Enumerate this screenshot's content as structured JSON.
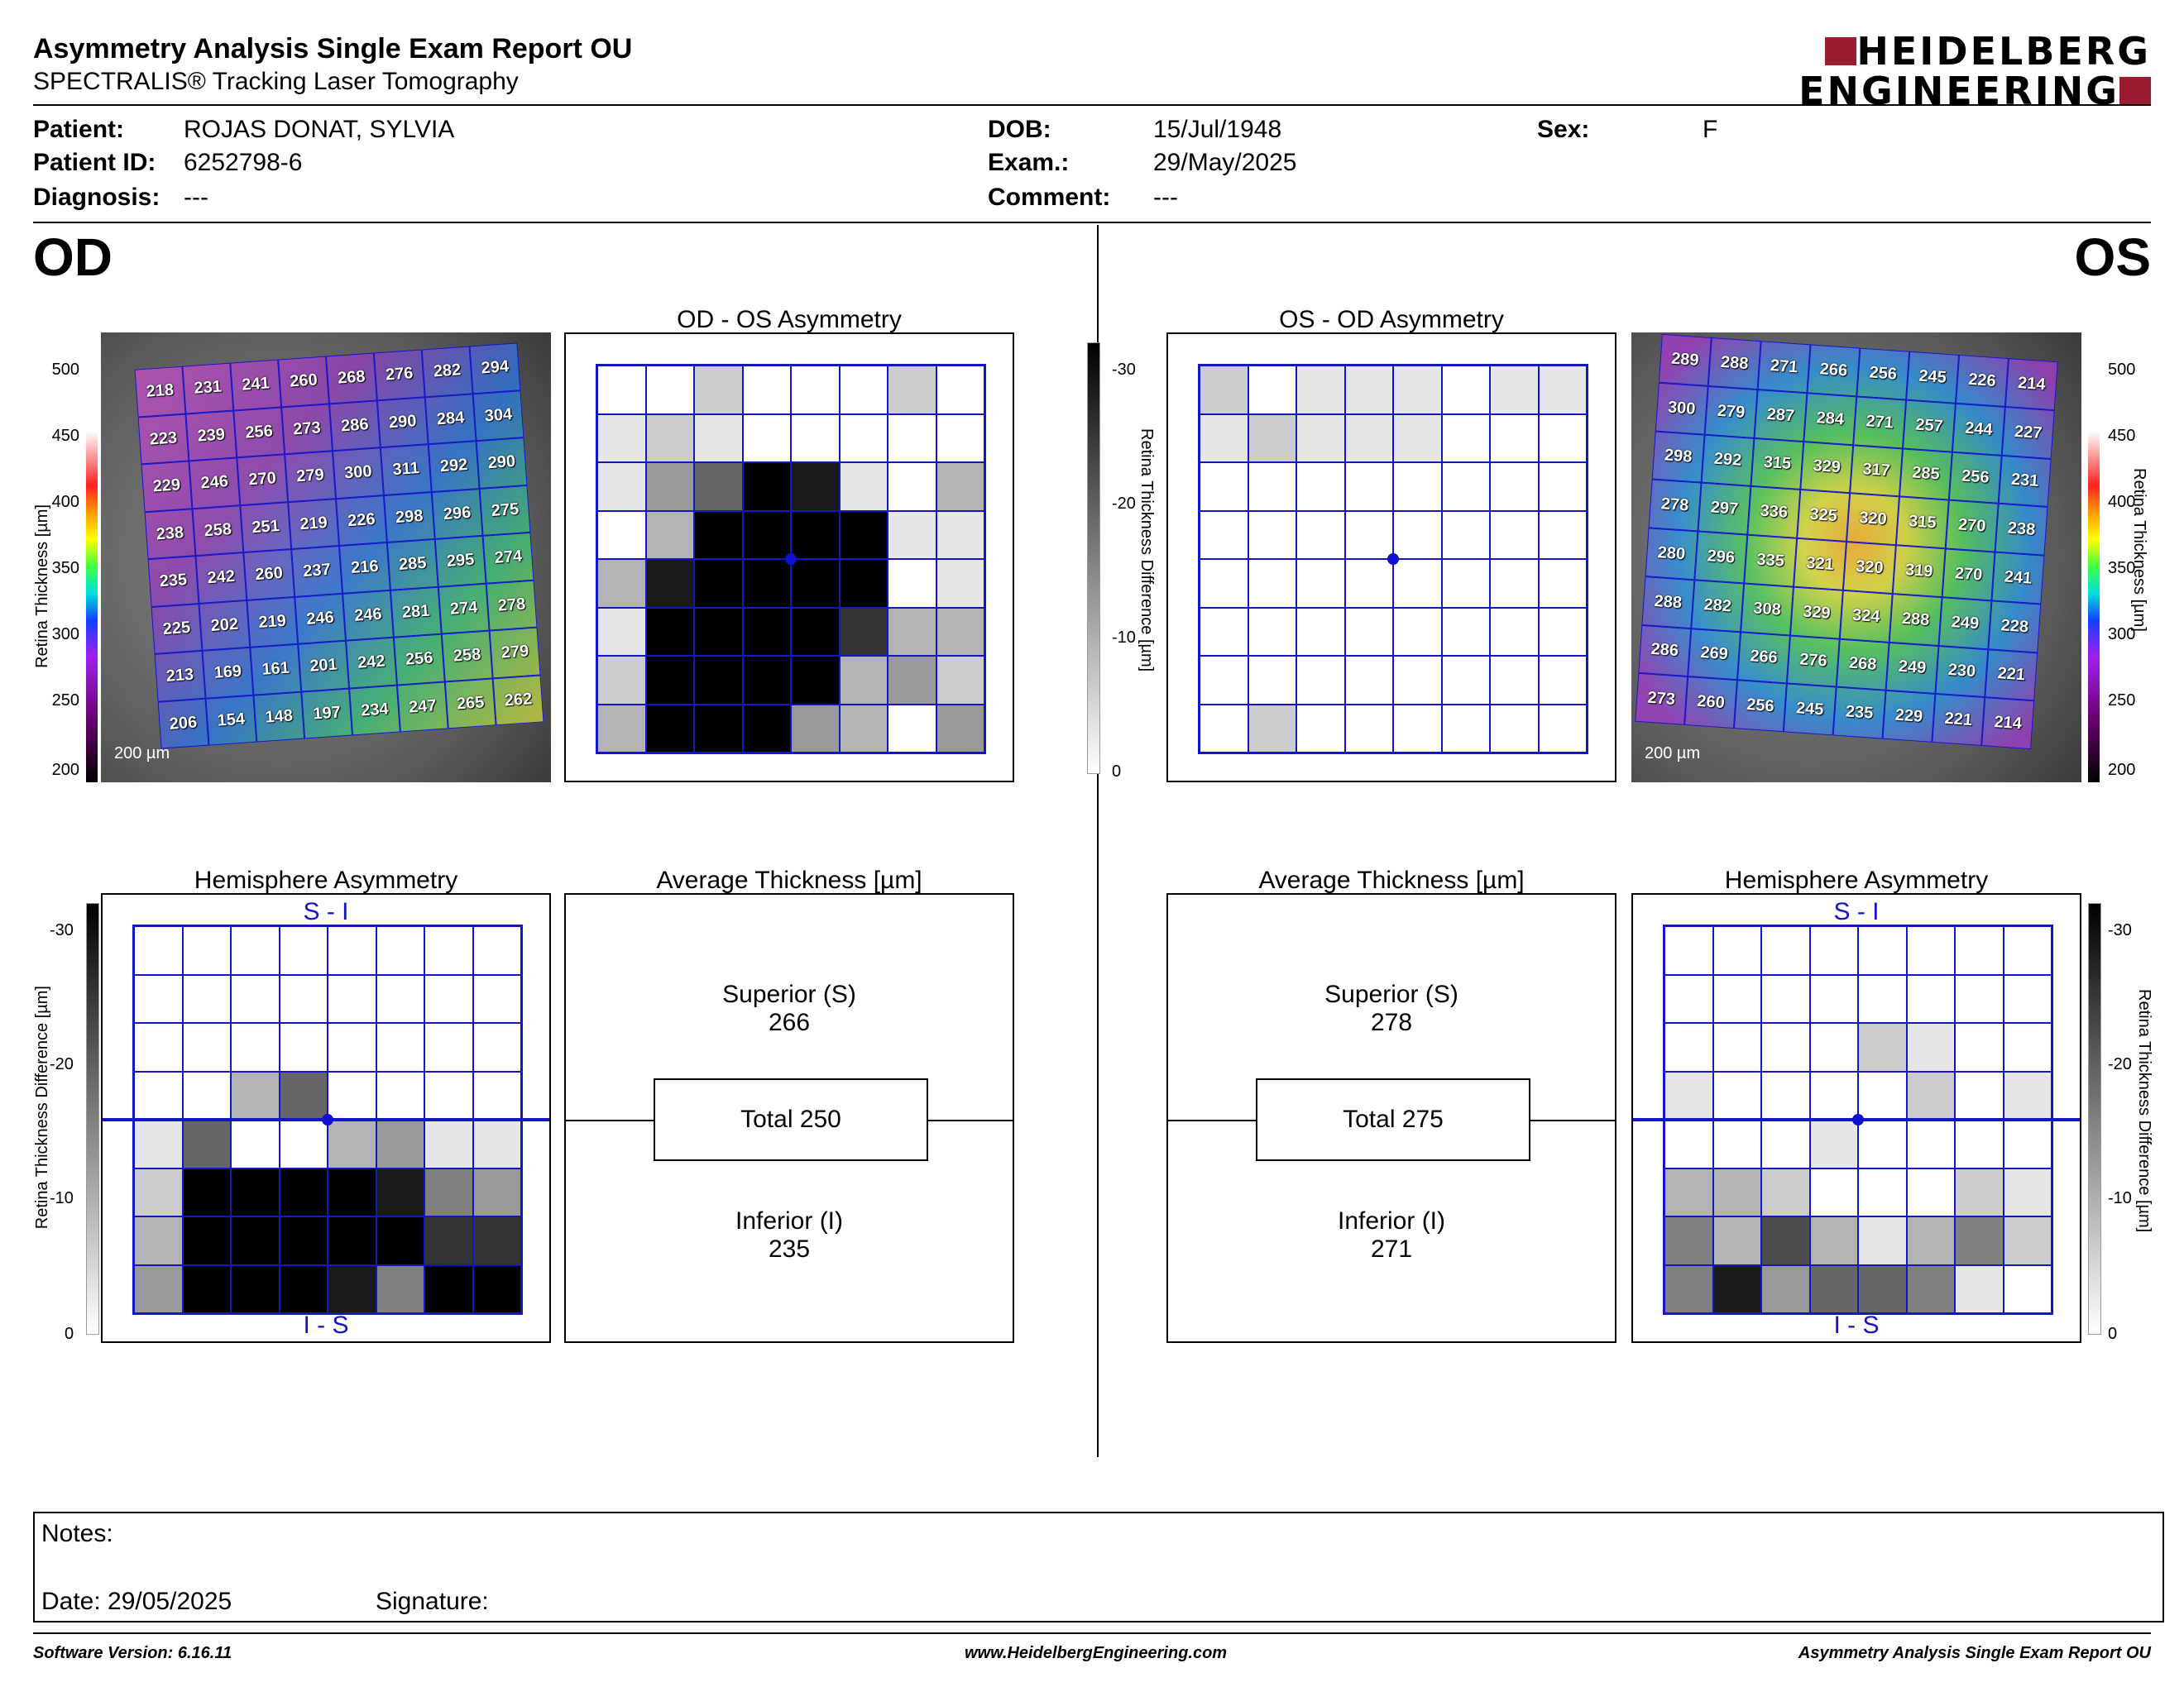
{
  "header": {
    "title": "Asymmetry Analysis Single Exam Report OU",
    "subtitle": "SPECTRALIS® Tracking Laser Tomography",
    "logo_line1": "HEIDELBERG",
    "logo_line2": "ENGINEERING"
  },
  "patient": {
    "patient_label": "Patient:",
    "patient_value": "ROJAS DONAT, SYLVIA",
    "id_label": "Patient ID:",
    "id_value": "6252798-6",
    "diagnosis_label": "Diagnosis:",
    "diagnosis_value": "---",
    "dob_label": "DOB:",
    "dob_value": "15/Jul/1948",
    "exam_label": "Exam.:",
    "exam_value": "29/May/2025",
    "comment_label": "Comment:",
    "comment_value": "---",
    "sex_label": "Sex:",
    "sex_value": "F"
  },
  "od": {
    "eye_label": "OD",
    "asym_title": "OD - OS Asymmetry",
    "hemi_title": "Hemisphere Asymmetry",
    "avg_title": "Average Thickness [µm]",
    "scale_bar": "200 µm",
    "thickness": [
      [
        218,
        231,
        241,
        260,
        268,
        276,
        282,
        294
      ],
      [
        223,
        239,
        256,
        273,
        286,
        290,
        284,
        304
      ],
      [
        229,
        246,
        270,
        279,
        300,
        311,
        292,
        290
      ],
      [
        238,
        258,
        251,
        219,
        226,
        298,
        296,
        275
      ],
      [
        235,
        242,
        260,
        237,
        216,
        285,
        295,
        274
      ],
      [
        225,
        202,
        219,
        246,
        246,
        281,
        274,
        278
      ],
      [
        213,
        169,
        161,
        201,
        242,
        256,
        258,
        279
      ],
      [
        206,
        154,
        148,
        197,
        234,
        247,
        265,
        262
      ]
    ],
    "asym_shades": [
      [
        0,
        0,
        2,
        0,
        0,
        0,
        2,
        0
      ],
      [
        1,
        2,
        1,
        0,
        0,
        0,
        0,
        0
      ],
      [
        1,
        4,
        6,
        10,
        9,
        1,
        0,
        3
      ],
      [
        0,
        3,
        10,
        10,
        10,
        10,
        1,
        1
      ],
      [
        3,
        9,
        10,
        10,
        10,
        10,
        0,
        1
      ],
      [
        1,
        10,
        10,
        10,
        10,
        8,
        3,
        3
      ],
      [
        2,
        10,
        10,
        10,
        10,
        3,
        4,
        2
      ],
      [
        3,
        10,
        10,
        10,
        4,
        3,
        0,
        4
      ]
    ],
    "hemi_shades": [
      [
        0,
        0,
        0,
        0,
        0,
        0,
        0,
        0
      ],
      [
        0,
        0,
        0,
        0,
        0,
        0,
        0,
        0
      ],
      [
        0,
        0,
        0,
        0,
        0,
        0,
        0,
        0
      ],
      [
        0,
        0,
        3,
        6,
        0,
        0,
        0,
        0
      ],
      [
        1,
        6,
        0,
        0,
        3,
        4,
        1,
        1
      ],
      [
        2,
        10,
        10,
        10,
        10,
        9,
        5,
        4
      ],
      [
        3,
        10,
        10,
        10,
        10,
        10,
        8,
        8
      ],
      [
        4,
        10,
        10,
        10,
        9,
        5,
        10,
        10
      ]
    ],
    "superior_label": "Superior (S)",
    "superior_value": "266",
    "total_label": "Total 250",
    "inferior_label": "Inferior (I)",
    "inferior_value": "235",
    "si_label": "S - I",
    "is_label": "I - S"
  },
  "os": {
    "eye_label": "OS",
    "asym_title": "OS - OD Asymmetry",
    "hemi_title": "Hemisphere Asymmetry",
    "avg_title": "Average Thickness [µm]",
    "scale_bar": "200 µm",
    "thickness": [
      [
        289,
        288,
        271,
        266,
        256,
        245,
        226,
        214
      ],
      [
        300,
        279,
        287,
        284,
        271,
        257,
        244,
        227
      ],
      [
        298,
        292,
        315,
        329,
        317,
        285,
        256,
        231
      ],
      [
        278,
        297,
        336,
        325,
        320,
        315,
        270,
        238
      ],
      [
        280,
        296,
        335,
        321,
        320,
        319,
        270,
        241
      ],
      [
        288,
        282,
        308,
        329,
        324,
        288,
        249,
        228
      ],
      [
        286,
        269,
        266,
        276,
        268,
        249,
        230,
        221
      ],
      [
        273,
        260,
        256,
        245,
        235,
        229,
        221,
        214
      ]
    ],
    "asym_shades": [
      [
        2,
        0,
        1,
        1,
        1,
        0,
        1,
        1
      ],
      [
        1,
        2,
        1,
        1,
        1,
        0,
        0,
        0
      ],
      [
        0,
        0,
        0,
        0,
        0,
        0,
        0,
        0
      ],
      [
        0,
        0,
        0,
        0,
        0,
        0,
        0,
        0
      ],
      [
        0,
        0,
        0,
        0,
        0,
        0,
        0,
        0
      ],
      [
        0,
        0,
        0,
        0,
        0,
        0,
        0,
        0
      ],
      [
        0,
        0,
        0,
        0,
        0,
        0,
        0,
        0
      ],
      [
        0,
        2,
        0,
        0,
        0,
        0,
        0,
        0
      ]
    ],
    "hemi_shades": [
      [
        0,
        0,
        0,
        0,
        0,
        0,
        0,
        0
      ],
      [
        0,
        0,
        0,
        0,
        0,
        0,
        0,
        0
      ],
      [
        0,
        0,
        0,
        0,
        2,
        1,
        0,
        0
      ],
      [
        1,
        0,
        0,
        0,
        0,
        2,
        0,
        1
      ],
      [
        0,
        0,
        0,
        1,
        0,
        0,
        0,
        0
      ],
      [
        3,
        3,
        2,
        0,
        0,
        0,
        2,
        1
      ],
      [
        5,
        3,
        7,
        3,
        1,
        3,
        5,
        2
      ],
      [
        5,
        9,
        4,
        6,
        6,
        5,
        1,
        0
      ]
    ],
    "superior_label": "Superior (S)",
    "superior_value": "278",
    "total_label": "Total 275",
    "inferior_label": "Inferior (I)",
    "inferior_value": "271",
    "si_label": "S - I",
    "is_label": "I - S"
  },
  "scales": {
    "thickness_ticks": [
      "500",
      "450",
      "400",
      "350",
      "300",
      "250",
      "200"
    ],
    "thickness_axis": "Retina  Thickness [µm]",
    "diff_ticks": [
      "-30",
      "-20",
      "-10",
      "0"
    ],
    "diff_axis": "Retina Thickness Difference [µm]"
  },
  "notes": {
    "notes_label": "Notes:",
    "date_label": "Date: 29/05/2025",
    "signature_label": "Signature:"
  },
  "footer": {
    "software": "Software Version: 6.16.11",
    "website": "www.HeidelbergEngineering.com",
    "report": "Asymmetry Analysis Single Exam Report OU"
  }
}
